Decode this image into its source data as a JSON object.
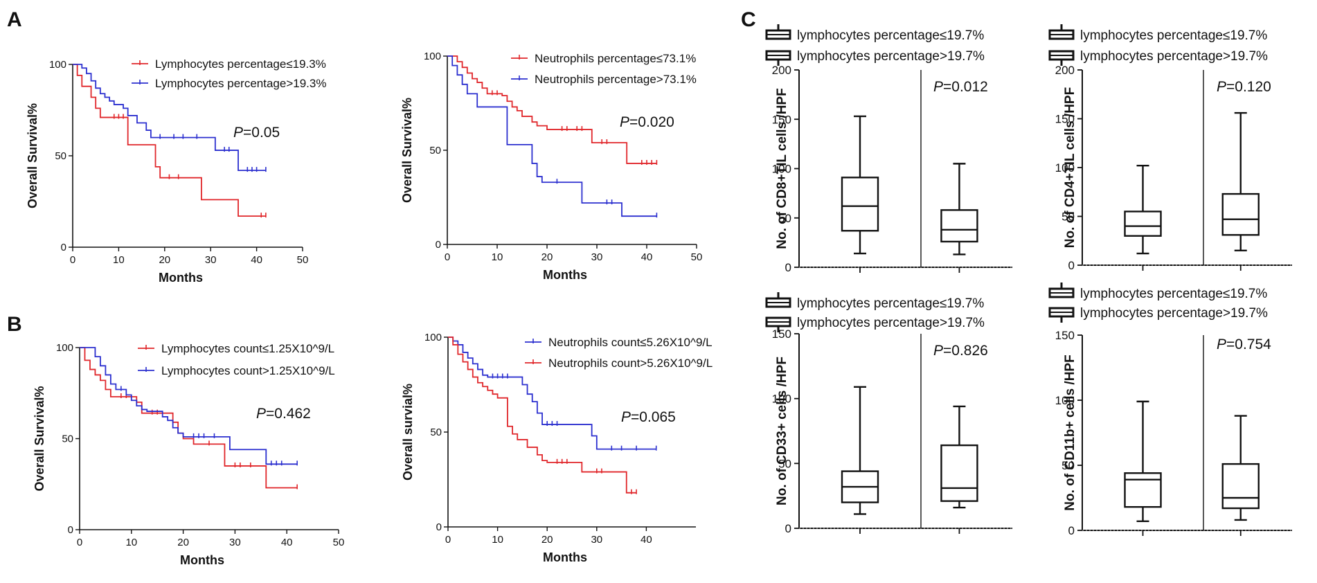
{
  "figure": {
    "panel_labels": {
      "a": "A",
      "b": "B",
      "c": "C"
    }
  },
  "chart_data": [
    {
      "id": "km-a-lymph-pct",
      "type": "line",
      "subtype": "kaplan-meier",
      "panel": "A",
      "xlabel": "Months",
      "ylabel": "Overall Survival%",
      "xlim": [
        0,
        50
      ],
      "ylim": [
        0,
        100
      ],
      "xticks": [
        0,
        10,
        20,
        30,
        40,
        50
      ],
      "yticks": [
        0,
        50,
        100
      ],
      "p_prefix": "P",
      "p_value": "=0.05",
      "legend_position": "top-right",
      "series": [
        {
          "name": "Lymphocytes percentage≤19.3%",
          "color": "#e0262a",
          "steps": [
            [
              0,
              100
            ],
            [
              1,
              94
            ],
            [
              2,
              88
            ],
            [
              4,
              82
            ],
            [
              5,
              76
            ],
            [
              6,
              71
            ],
            [
              12,
              56
            ],
            [
              18,
              44
            ],
            [
              19,
              38
            ],
            [
              28,
              26
            ],
            [
              36,
              17
            ],
            [
              42,
              17
            ]
          ],
          "censors": [
            [
              9,
              71
            ],
            [
              10,
              71
            ],
            [
              11,
              71
            ],
            [
              21,
              38
            ],
            [
              23,
              38
            ],
            [
              41,
              17
            ],
            [
              42,
              17
            ]
          ]
        },
        {
          "name": "Lymphocytes percentage>19.3%",
          "color": "#2b2fcf",
          "steps": [
            [
              0,
              100
            ],
            [
              2,
              98
            ],
            [
              3,
              95
            ],
            [
              4,
              91
            ],
            [
              5,
              87
            ],
            [
              6,
              84
            ],
            [
              7,
              82
            ],
            [
              8,
              80
            ],
            [
              9,
              78
            ],
            [
              11,
              76
            ],
            [
              12,
              72
            ],
            [
              14,
              68
            ],
            [
              16,
              64
            ],
            [
              17,
              60
            ],
            [
              18,
              60
            ],
            [
              31,
              53
            ],
            [
              36,
              42
            ],
            [
              42,
              42
            ]
          ],
          "censors": [
            [
              19,
              60
            ],
            [
              22,
              60
            ],
            [
              24,
              60
            ],
            [
              27,
              60
            ],
            [
              33,
              53
            ],
            [
              34,
              53
            ],
            [
              38,
              42
            ],
            [
              39,
              42
            ],
            [
              40,
              42
            ],
            [
              42,
              42
            ]
          ]
        }
      ]
    },
    {
      "id": "km-a-neut-pct",
      "type": "line",
      "subtype": "kaplan-meier",
      "panel": "A",
      "xlabel": "Months",
      "ylabel": "Overall Survival%",
      "xlim": [
        0,
        50
      ],
      "ylim": [
        0,
        100
      ],
      "xticks": [
        0,
        10,
        20,
        30,
        40,
        50
      ],
      "yticks": [
        0,
        50,
        100
      ],
      "p_prefix": "P",
      "p_value": "=0.020",
      "legend_position": "top-right",
      "series": [
        {
          "name": "Neutrophils percentage≤73.1%",
          "color": "#e0262a",
          "steps": [
            [
              0,
              100
            ],
            [
              2,
              97
            ],
            [
              3,
              94
            ],
            [
              4,
              91
            ],
            [
              5,
              88
            ],
            [
              6,
              86
            ],
            [
              7,
              83
            ],
            [
              8,
              80
            ],
            [
              11,
              79
            ],
            [
              12,
              76
            ],
            [
              13,
              73
            ],
            [
              14,
              71
            ],
            [
              15,
              68
            ],
            [
              17,
              65
            ],
            [
              18,
              63
            ],
            [
              20,
              61
            ],
            [
              29,
              54
            ],
            [
              36,
              43
            ],
            [
              42,
              43
            ]
          ],
          "censors": [
            [
              9,
              80
            ],
            [
              10,
              80
            ],
            [
              23,
              61
            ],
            [
              24,
              61
            ],
            [
              26,
              61
            ],
            [
              27,
              61
            ],
            [
              31,
              54
            ],
            [
              32,
              54
            ],
            [
              39,
              43
            ],
            [
              40,
              43
            ],
            [
              41,
              43
            ],
            [
              42,
              43
            ]
          ]
        },
        {
          "name": "Neutrophils percentage>73.1%",
          "color": "#2b2fcf",
          "steps": [
            [
              0,
              100
            ],
            [
              1,
              95
            ],
            [
              2,
              90
            ],
            [
              3,
              85
            ],
            [
              4,
              80
            ],
            [
              6,
              73
            ],
            [
              9,
              73
            ],
            [
              12,
              53
            ],
            [
              17,
              43
            ],
            [
              18,
              36
            ],
            [
              19,
              33
            ],
            [
              27,
              22
            ],
            [
              35,
              15
            ],
            [
              42,
              15
            ]
          ],
          "censors": [
            [
              22,
              33
            ],
            [
              32,
              22
            ],
            [
              33,
              22
            ],
            [
              42,
              15
            ]
          ]
        }
      ]
    },
    {
      "id": "km-b-lymph-count",
      "type": "line",
      "subtype": "kaplan-meier",
      "panel": "B",
      "xlabel": "Months",
      "ylabel": "Overall Survival%",
      "xlim": [
        0,
        50
      ],
      "ylim": [
        0,
        100
      ],
      "xticks": [
        0,
        10,
        20,
        30,
        40,
        50
      ],
      "yticks": [
        0,
        50,
        100
      ],
      "p_prefix": "P",
      "p_value": "=0.462",
      "legend_position": "top-right",
      "series": [
        {
          "name": "Lymphocytes count≤1.25X10^9/L",
          "color": "#e0262a",
          "steps": [
            [
              0,
              100
            ],
            [
              1,
              93
            ],
            [
              2,
              88
            ],
            [
              3,
              85
            ],
            [
              4,
              82
            ],
            [
              5,
              77
            ],
            [
              6,
              73
            ],
            [
              10,
              73
            ],
            [
              11,
              70
            ],
            [
              12,
              64
            ],
            [
              18,
              59
            ],
            [
              19,
              53
            ],
            [
              20,
              50
            ],
            [
              22,
              47
            ],
            [
              28,
              35
            ],
            [
              36,
              23
            ],
            [
              42,
              23
            ]
          ],
          "censors": [
            [
              8,
              73
            ],
            [
              9,
              73
            ],
            [
              14,
              64
            ],
            [
              15,
              64
            ],
            [
              25,
              47
            ],
            [
              30,
              35
            ],
            [
              31,
              35
            ],
            [
              33,
              35
            ],
            [
              42,
              23
            ]
          ]
        },
        {
          "name": "Lymphocytes count>1.25X10^9/L",
          "color": "#2b2fcf",
          "steps": [
            [
              0,
              100
            ],
            [
              3,
              95
            ],
            [
              4,
              90
            ],
            [
              5,
              85
            ],
            [
              6,
              80
            ],
            [
              7,
              77
            ],
            [
              9,
              74
            ],
            [
              10,
              71
            ],
            [
              11,
              68
            ],
            [
              12,
              66
            ],
            [
              13,
              65
            ],
            [
              16,
              62
            ],
            [
              17,
              60
            ],
            [
              18,
              56
            ],
            [
              19,
              53
            ],
            [
              20,
              51
            ],
            [
              29,
              44
            ],
            [
              36,
              36
            ],
            [
              42,
              36
            ]
          ],
          "censors": [
            [
              8,
              77
            ],
            [
              22,
              51
            ],
            [
              23,
              51
            ],
            [
              24,
              51
            ],
            [
              26,
              51
            ],
            [
              37,
              36
            ],
            [
              38,
              36
            ],
            [
              39,
              36
            ],
            [
              42,
              36
            ]
          ]
        }
      ]
    },
    {
      "id": "km-b-neut-count",
      "type": "line",
      "subtype": "kaplan-meier",
      "panel": "B",
      "xlabel": "Months",
      "ylabel": "Overall survial%",
      "xlim": [
        0,
        50
      ],
      "ylim": [
        0,
        100
      ],
      "xticks": [
        0,
        10,
        20,
        30,
        40
      ],
      "yticks": [
        0,
        50,
        100
      ],
      "p_prefix": "P",
      "p_value": "=0.065",
      "legend_position": "top-right",
      "series": [
        {
          "name": "Neutrophils count≤5.26X10^9/L",
          "color": "#2b2fcf",
          "steps": [
            [
              0,
              100
            ],
            [
              1,
              98
            ],
            [
              2,
              96
            ],
            [
              3,
              92
            ],
            [
              4,
              89
            ],
            [
              5,
              86
            ],
            [
              6,
              83
            ],
            [
              7,
              80
            ],
            [
              8,
              79
            ],
            [
              15,
              75
            ],
            [
              16,
              70
            ],
            [
              17,
              66
            ],
            [
              18,
              60
            ],
            [
              19,
              54
            ],
            [
              29,
              48
            ],
            [
              30,
              41
            ],
            [
              42,
              41
            ]
          ],
          "censors": [
            [
              9,
              79
            ],
            [
              10,
              79
            ],
            [
              11,
              79
            ],
            [
              12,
              79
            ],
            [
              20,
              54
            ],
            [
              21,
              54
            ],
            [
              22,
              54
            ],
            [
              33,
              41
            ],
            [
              35,
              41
            ],
            [
              38,
              41
            ],
            [
              42,
              41
            ]
          ]
        },
        {
          "name": "Neutrophils count>5.26X10^9/L",
          "color": "#e0262a",
          "steps": [
            [
              0,
              100
            ],
            [
              1,
              96
            ],
            [
              2,
              91
            ],
            [
              3,
              87
            ],
            [
              4,
              83
            ],
            [
              5,
              79
            ],
            [
              6,
              76
            ],
            [
              7,
              74
            ],
            [
              8,
              72
            ],
            [
              9,
              70
            ],
            [
              10,
              68
            ],
            [
              12,
              53
            ],
            [
              13,
              49
            ],
            [
              14,
              46
            ],
            [
              16,
              42
            ],
            [
              18,
              38
            ],
            [
              19,
              35
            ],
            [
              20,
              34
            ],
            [
              27,
              29
            ],
            [
              36,
              18
            ],
            [
              38,
              18
            ]
          ],
          "censors": [
            [
              22,
              34
            ],
            [
              23,
              34
            ],
            [
              24,
              34
            ],
            [
              30,
              29
            ],
            [
              31,
              29
            ],
            [
              37,
              18
            ],
            [
              38,
              18
            ]
          ]
        }
      ]
    },
    {
      "id": "box-cd8",
      "type": "box",
      "panel": "C",
      "ylabel": "No. of CD8+TIL cells /HPF",
      "ylim": [
        0,
        200
      ],
      "yticks": [
        0,
        50,
        100,
        150,
        200
      ],
      "p_prefix": "P",
      "p_value": "=0.012",
      "legend_position": "top-left",
      "series": [
        {
          "name": "lymphocytes percentage≤19.7%",
          "min": 14,
          "q1": 37,
          "median": 62,
          "q3": 91,
          "max": 153
        },
        {
          "name": "lymphocytes percentage>19.7%",
          "min": 13,
          "q1": 26,
          "median": 38,
          "q3": 58,
          "max": 105
        }
      ]
    },
    {
      "id": "box-cd4",
      "type": "box",
      "panel": "C",
      "ylabel": "No. of CD4+TIL cells /HPF",
      "ylim": [
        0,
        200
      ],
      "yticks": [
        0,
        50,
        100,
        150,
        200
      ],
      "p_prefix": "P",
      "p_value": "=0.120",
      "legend_position": "top-left",
      "series": [
        {
          "name": "lymphocytes percentage≤19.7%",
          "min": 12,
          "q1": 30,
          "median": 40,
          "q3": 55,
          "max": 102
        },
        {
          "name": "lymphocytes percentage>19.7%",
          "min": 15,
          "q1": 31,
          "median": 47,
          "q3": 73,
          "max": 156
        }
      ]
    },
    {
      "id": "box-cd33",
      "type": "box",
      "panel": "C",
      "ylabel": "No. of CD33+ cells /HPF",
      "ylim": [
        0,
        150
      ],
      "yticks": [
        0,
        50,
        100,
        150
      ],
      "p_prefix": "P",
      "p_value": "=0.826",
      "legend_position": "top-left",
      "series": [
        {
          "name": "lymphocytes percentage≤19.7%",
          "min": 11,
          "q1": 20,
          "median": 32,
          "q3": 44,
          "max": 109
        },
        {
          "name": "lymphocytes percentage>19.7%",
          "min": 16,
          "q1": 21,
          "median": 31,
          "q3": 64,
          "max": 94
        }
      ]
    },
    {
      "id": "box-cd11b",
      "type": "box",
      "panel": "C",
      "ylabel": "No. of CD11b+ cells /HPF",
      "ylim": [
        0,
        150
      ],
      "yticks": [
        0,
        50,
        100,
        150
      ],
      "p_prefix": "P",
      "p_value": "=0.754",
      "legend_position": "top-left",
      "series": [
        {
          "name": "lymphocytes percentage≤19.7%",
          "min": 7,
          "q1": 18,
          "median": 39,
          "q3": 44,
          "max": 99
        },
        {
          "name": "lymphocytes percentage>19.7%",
          "min": 8,
          "q1": 17,
          "median": 25,
          "q3": 51,
          "max": 88
        }
      ]
    }
  ]
}
